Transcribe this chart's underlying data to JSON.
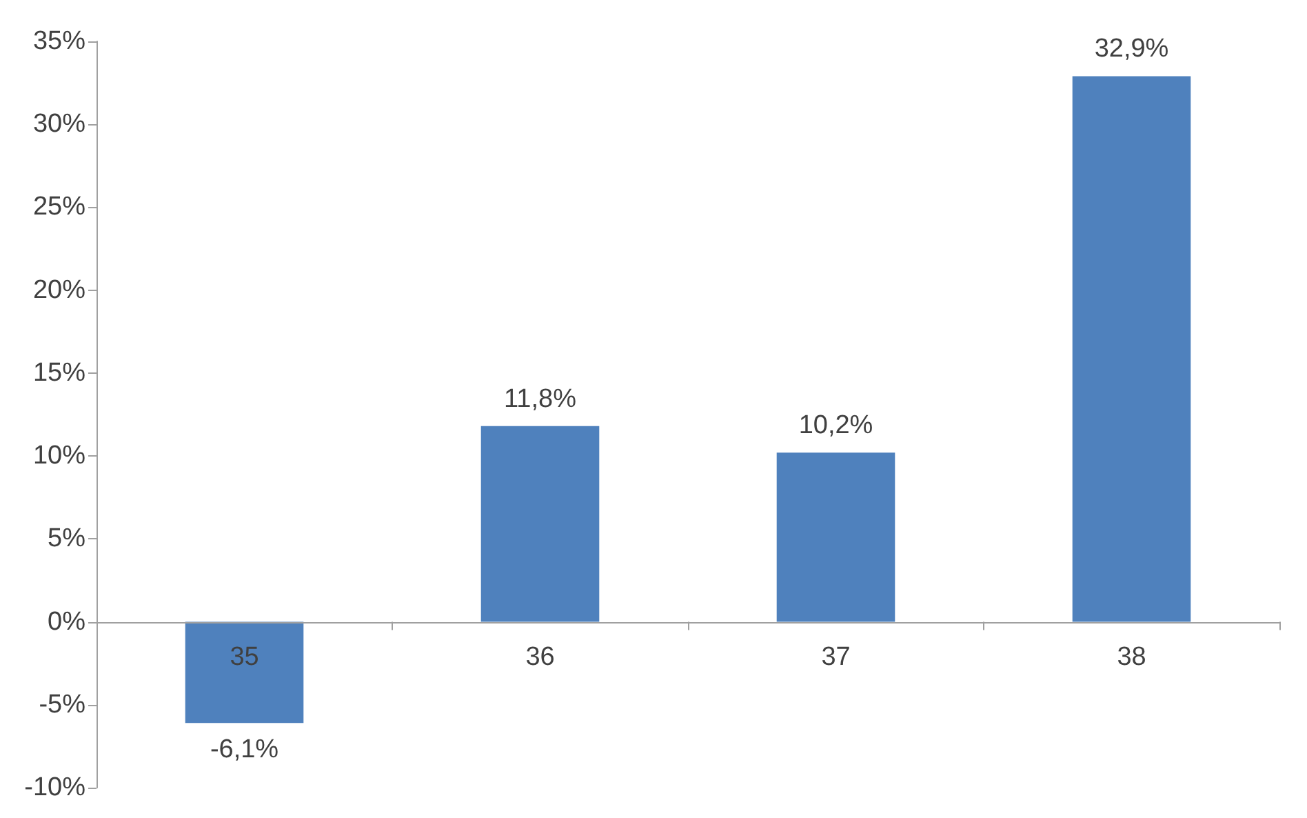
{
  "chart_data": {
    "type": "bar",
    "categories": [
      "35",
      "36",
      "37",
      "38"
    ],
    "values": [
      -6.1,
      11.8,
      10.2,
      32.9
    ],
    "value_labels": [
      "-6,1%",
      "11,8%",
      "10,2%",
      "32,9%"
    ],
    "color": "#4f81bd",
    "ylim": [
      -10,
      35
    ],
    "yticks": [
      {
        "value": -10,
        "label": "-10%"
      },
      {
        "value": -5,
        "label": "-5%"
      },
      {
        "value": 0,
        "label": "0%"
      },
      {
        "value": 5,
        "label": "5%"
      },
      {
        "value": 10,
        "label": "10%"
      },
      {
        "value": 15,
        "label": "15%"
      },
      {
        "value": 20,
        "label": "20%"
      },
      {
        "value": 25,
        "label": "25%"
      },
      {
        "value": 30,
        "label": "30%"
      },
      {
        "value": 35,
        "label": "35%"
      }
    ],
    "grid": false
  }
}
